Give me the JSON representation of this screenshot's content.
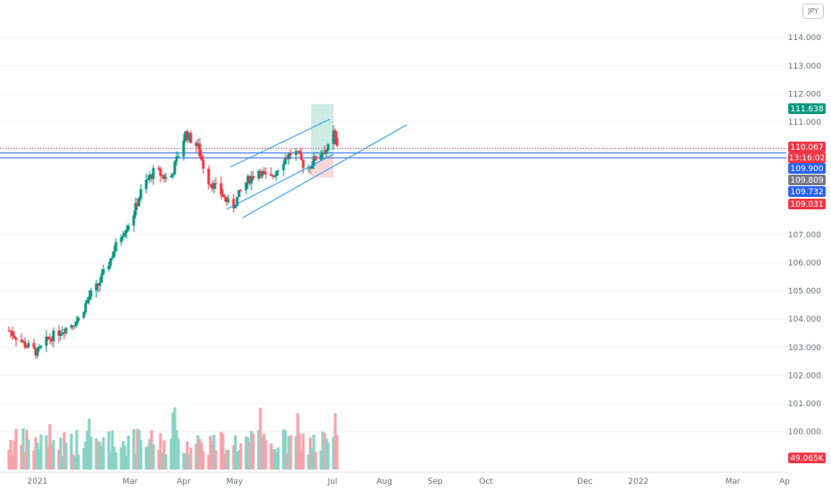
{
  "currency_badge": "JPY",
  "chart_data": {
    "type": "candlestick",
    "price_axis": {
      "ticks": [
        "114.000",
        "113.000",
        "112.000",
        "111.000",
        "107.000",
        "106.000",
        "105.000",
        "104.000",
        "103.000",
        "102.000",
        "101.000",
        "100.000"
      ],
      "ylim": [
        99.0,
        115.0
      ]
    },
    "time_axis": {
      "labels": [
        "2021",
        "Mar",
        "Apr",
        "May",
        "Jul",
        "Aug",
        "Sep",
        "Oct",
        "Dec",
        "2022",
        "Mar",
        "Ap"
      ]
    },
    "price_labels": [
      {
        "value": "111.638",
        "color": "#089981"
      },
      {
        "value": "110.067",
        "color": "#f23645"
      },
      {
        "value": "13:16:02",
        "color": "#f23645"
      },
      {
        "value": "109.900",
        "color": "#2962ff"
      },
      {
        "value": "109.809",
        "color": "#787b86"
      },
      {
        "value": "109.732",
        "color": "#2962ff"
      },
      {
        "value": "109.031",
        "color": "#f23645"
      }
    ],
    "volume_label": {
      "value": "49.065K",
      "color": "#f23645"
    },
    "horizontal_lines": [
      {
        "name": "last-price",
        "value": 110.067,
        "style": "dotted",
        "color": "#f23645"
      },
      {
        "name": "level-109-900",
        "value": 109.9,
        "style": "solid",
        "color": "#2962ff"
      },
      {
        "name": "level-109-732",
        "value": 109.732,
        "style": "solid",
        "color": "#2962ff"
      }
    ],
    "position_tool": {
      "entry": 109.809,
      "target": 111.638,
      "stop": 109.031
    },
    "channel": {
      "upper": [
        [
          "2021-04-23",
          109.4
        ],
        [
          "2021-06-18",
          111.1
        ]
      ],
      "lower": [
        [
          "2021-04-30",
          107.6
        ],
        [
          "2021-07-31",
          110.9
        ]
      ]
    },
    "ohlc": [],
    "volume": []
  }
}
